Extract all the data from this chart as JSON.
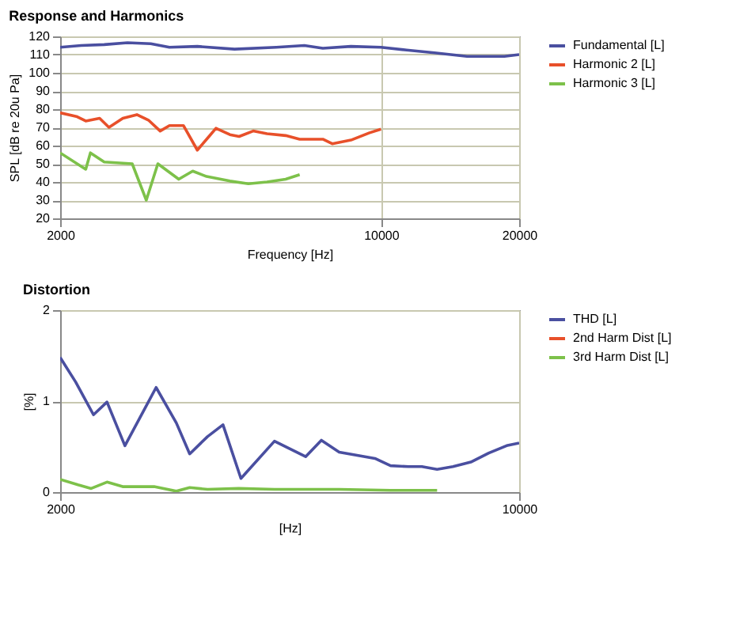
{
  "chart_data": [
    {
      "type": "line",
      "title": "Response and Harmonics",
      "xlabel": "Frequency [Hz]",
      "ylabel": "SPL [dB re 20u Pa]",
      "log": "x",
      "xlim": [
        2000,
        20000
      ],
      "xticks": [
        2000,
        10000,
        20000
      ],
      "ylim": [
        20,
        120
      ],
      "yticks": [
        20,
        30,
        40,
        50,
        60,
        70,
        80,
        90,
        100,
        110,
        120
      ],
      "grid": true,
      "legend": "right",
      "series": [
        {
          "name": "Fundamental [L]",
          "color": "#4a4fa0",
          "x": [
            2000,
            2222,
            2495,
            2804,
            3151,
            3460,
            3980,
            4797,
            5916,
            6808,
            7470,
            8600,
            10000,
            11370,
            13080,
            15400,
            18570,
            20000
          ],
          "values": [
            114,
            115,
            115.5,
            116.5,
            116,
            114,
            114.5,
            113,
            114,
            115,
            113.5,
            114.5,
            114,
            112.5,
            111,
            109,
            109,
            110
          ]
        },
        {
          "name": "Harmonic 2 [L]",
          "color": "#e8502a",
          "x": [
            2000,
            2170,
            2274,
            2438,
            2555,
            2739,
            2939,
            3114,
            3303,
            3460,
            3712,
            3980,
            4220,
            4370,
            4687,
            4909,
            5267,
            5645,
            6200,
            6650,
            7470,
            7830,
            8600,
            9440,
            10000
          ],
          "values": [
            78,
            76,
            73.5,
            75,
            70,
            75,
            77,
            74,
            68,
            71,
            71,
            57.5,
            65,
            69.5,
            66,
            65,
            68,
            66.5,
            65.5,
            63.5,
            63.5,
            61,
            63,
            67,
            69
          ]
        },
        {
          "name": "Harmonic 3 [L]",
          "color": "#7dc14a",
          "x": [
            2000,
            2274,
            2328,
            2495,
            2871,
            3081,
            3265,
            3626,
            3889,
            4170,
            4687,
            5143,
            5645,
            6200,
            6650
          ],
          "values": [
            56,
            47,
            56,
            51,
            50,
            30,
            50,
            41.5,
            46,
            43,
            40.5,
            39,
            40,
            41.5,
            44
          ]
        }
      ]
    },
    {
      "type": "line",
      "title": "Distortion",
      "xlabel": "[Hz]",
      "ylabel": "[%]",
      "log": "x",
      "xlim": [
        2000,
        10000
      ],
      "xticks": [
        2000,
        10000
      ],
      "ylim": [
        0,
        2
      ],
      "yticks": [
        0,
        1,
        2
      ],
      "grid": true,
      "legend": "right",
      "series": [
        {
          "name": "THD [L]",
          "color": "#4a4fa0",
          "x": [
            2000,
            2112,
            2248,
            2357,
            2510,
            2800,
            3006,
            3150,
            3353,
            3540,
            3770,
            4240,
            4730,
            4998,
            5320,
            5710,
            6030,
            6370,
            6780,
            7110,
            7500,
            7930,
            8440,
            8990,
            9570,
            10000
          ],
          "values": [
            1.48,
            1.21,
            0.85,
            0.99,
            0.51,
            1.15,
            0.76,
            0.42,
            0.61,
            0.74,
            0.15,
            0.56,
            0.39,
            0.57,
            0.44,
            0.4,
            0.37,
            0.29,
            0.28,
            0.28,
            0.25,
            0.28,
            0.33,
            0.43,
            0.51,
            0.54
          ]
        },
        {
          "name": "2nd Harm Dist [L]",
          "color": "#e8502a"
        },
        {
          "name": "3rd Harm Dist [L]",
          "color": "#7dc14a",
          "x": [
            2000,
            2129,
            2230,
            2357,
            2490,
            2780,
            3006,
            3150,
            3353,
            3741,
            4240,
            5320,
            6370,
            7500
          ],
          "values": [
            0.14,
            0.08,
            0.04,
            0.11,
            0.06,
            0.06,
            0.01,
            0.05,
            0.03,
            0.04,
            0.03,
            0.03,
            0.02,
            0.02
          ]
        }
      ]
    }
  ]
}
